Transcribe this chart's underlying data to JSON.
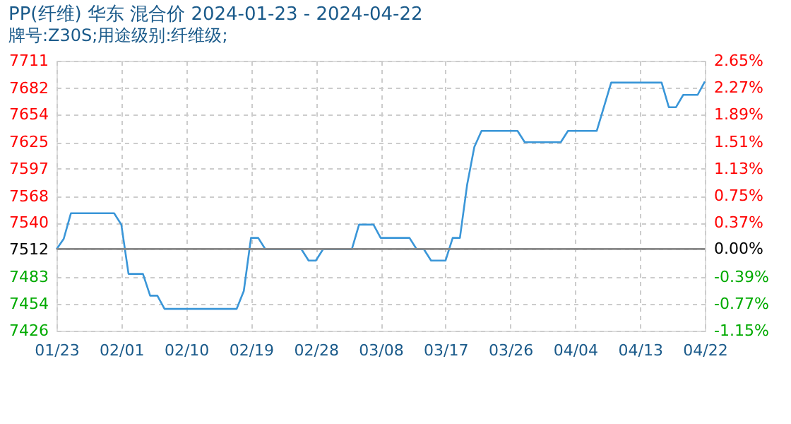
{
  "chart_data": {
    "type": "line",
    "title": "PP(纤维) 华东 混合价 2024-01-23 - 2024-04-22",
    "subtitle": "牌号:Z30S;用途级别:纤维级;",
    "x": [
      "2024-01-23",
      "2024-01-24",
      "2024-01-25",
      "2024-01-31",
      "2024-02-01",
      "2024-02-02",
      "2024-02-04",
      "2024-02-05",
      "2024-02-06",
      "2024-02-07",
      "2024-02-17",
      "2024-02-18",
      "2024-02-19",
      "2024-02-20",
      "2024-02-21",
      "2024-02-26",
      "2024-02-27",
      "2024-02-28",
      "2024-02-29",
      "2024-03-04",
      "2024-03-05",
      "2024-03-07",
      "2024-03-08",
      "2024-03-12",
      "2024-03-13",
      "2024-03-14",
      "2024-03-15",
      "2024-03-17",
      "2024-03-18",
      "2024-03-19",
      "2024-03-20",
      "2024-03-21",
      "2024-03-22",
      "2024-03-27",
      "2024-03-28",
      "2024-04-02",
      "2024-04-03",
      "2024-04-07",
      "2024-04-09",
      "2024-04-16",
      "2024-04-17",
      "2024-04-18",
      "2024-04-19",
      "2024-04-21",
      "2024-04-22"
    ],
    "series": [
      {
        "color": "#3a96d8",
        "values": [
          7512,
          7523,
          7550,
          7550,
          7538,
          7486,
          7486,
          7463,
          7463,
          7449,
          7449,
          7468,
          7524,
          7524,
          7512,
          7512,
          7500,
          7500,
          7512,
          7512,
          7538,
          7538,
          7524,
          7524,
          7512,
          7512,
          7500,
          7500,
          7524,
          7524,
          7580,
          7620,
          7637,
          7637,
          7625,
          7625,
          7637,
          7637,
          7688,
          7688,
          7662,
          7662,
          7675,
          7675,
          7689
        ]
      }
    ],
    "xlim": [
      "2024-01-23",
      "2024-04-22"
    ],
    "xticks": [
      {
        "value": "2024-01-23",
        "label": "01/23"
      },
      {
        "value": "2024-02-01",
        "label": "02/01"
      },
      {
        "value": "2024-02-10",
        "label": "02/10"
      },
      {
        "value": "2024-02-19",
        "label": "02/19"
      },
      {
        "value": "2024-02-28",
        "label": "02/28"
      },
      {
        "value": "2024-03-08",
        "label": "03/08"
      },
      {
        "value": "2024-03-17",
        "label": "03/17"
      },
      {
        "value": "2024-03-26",
        "label": "03/26"
      },
      {
        "value": "2024-04-04",
        "label": "04/04"
      },
      {
        "value": "2024-04-13",
        "label": "04/13"
      },
      {
        "value": "2024-04-22",
        "label": "04/22"
      }
    ],
    "ylim": [
      7426,
      7711
    ],
    "yticks": [
      7426,
      7454,
      7483,
      7512,
      7540,
      7568,
      7597,
      7625,
      7654,
      7682,
      7711
    ],
    "y2lim": [
      -1.15,
      2.65
    ],
    "y2ticks": [
      {
        "value": -1.15,
        "label": "-1.15%"
      },
      {
        "value": -0.77,
        "label": "-0.77%"
      },
      {
        "value": -0.39,
        "label": "-0.39%"
      },
      {
        "value": 0,
        "label": "0.00%"
      },
      {
        "value": 0.37,
        "label": "0.37%"
      },
      {
        "value": 0.75,
        "label": "0.75%"
      },
      {
        "value": 1.13,
        "label": "1.13%"
      },
      {
        "value": 1.51,
        "label": "1.51%"
      },
      {
        "value": 1.89,
        "label": "1.89%"
      },
      {
        "value": 2.27,
        "label": "2.27%"
      },
      {
        "value": 2.65,
        "label": "2.65%"
      }
    ],
    "ref_lines": [
      {
        "axis": "y2",
        "value": 0,
        "color": "#888888",
        "line_style": "solid"
      }
    ],
    "grid": true,
    "marker": "none",
    "line_style": "solid"
  }
}
